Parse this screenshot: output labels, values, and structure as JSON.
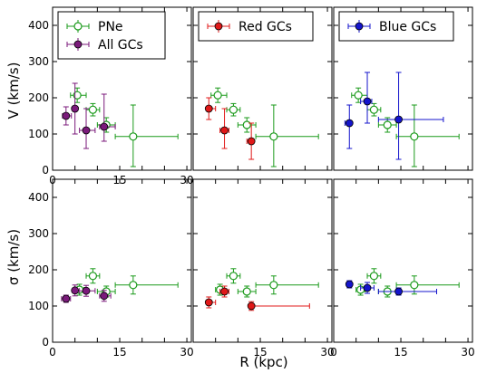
{
  "figure": {
    "xlabel": "R (kpc)",
    "ylabel_top": "V (km/s)",
    "ylabel_bottom": "σ (km/s)"
  },
  "series_styles": {
    "pne": {
      "name": "PNe",
      "color": "#1a9a1a",
      "marker": "open-circle"
    },
    "all_gcs": {
      "name": "All GCs",
      "color": "#7b1a7b",
      "marker": "filled-circle"
    },
    "red_gcs": {
      "name": "Red GCs",
      "color": "#e01818",
      "marker": "filled-circle"
    },
    "blue_gcs": {
      "name": "Blue GCs",
      "color": "#1414cc",
      "marker": "filled-circle"
    }
  },
  "chart_data": [
    {
      "type": "scatter",
      "panel": "top-left",
      "xlim": [
        0,
        31
      ],
      "ylim": [
        0,
        450
      ],
      "xticks": [
        0,
        5,
        10,
        15,
        20,
        25,
        30
      ],
      "xtick_labels": [
        "0",
        "",
        "",
        "15",
        "",
        "",
        "30"
      ],
      "yticks": [
        0,
        100,
        200,
        300,
        400
      ],
      "ytick_labels": [
        "0",
        "100",
        "200",
        "300",
        "400"
      ],
      "legend": [
        "pne",
        "all_gcs"
      ],
      "legend_placement": "top-left",
      "series": [
        {
          "style": "pne",
          "points": [
            {
              "x": 5.5,
              "xerr": [
                1.5,
                2.0
              ],
              "y": 207,
              "yerr": [
                20,
                20
              ]
            },
            {
              "x": 9.0,
              "xerr": [
                1.5,
                1.5
              ],
              "y": 167,
              "yerr": [
                17,
                17
              ]
            },
            {
              "x": 12.0,
              "xerr": [
                2.0,
                2.0
              ],
              "y": 125,
              "yerr": [
                20,
                20
              ]
            },
            {
              "x": 18.0,
              "xerr": [
                4.0,
                10.0
              ],
              "y": 93,
              "yerr": [
                83,
                87
              ]
            }
          ]
        },
        {
          "style": "all_gcs",
          "points": [
            {
              "x": 3.0,
              "xerr": [
                0.8,
                1.2
              ],
              "y": 150,
              "yerr": [
                25,
                25
              ]
            },
            {
              "x": 5.0,
              "xerr": [
                0.5,
                0.5
              ],
              "y": 170,
              "yerr": [
                70,
                70
              ]
            },
            {
              "x": 7.5,
              "xerr": [
                1.5,
                2.0
              ],
              "y": 110,
              "yerr": [
                50,
                60
              ]
            },
            {
              "x": 11.5,
              "xerr": [
                1.0,
                2.5
              ],
              "y": 120,
              "yerr": [
                40,
                90
              ]
            }
          ]
        }
      ]
    },
    {
      "type": "scatter",
      "panel": "top-middle",
      "xlim": [
        0,
        31
      ],
      "ylim": [
        0,
        450
      ],
      "xticks": [
        0,
        5,
        10,
        15,
        20,
        25,
        30
      ],
      "yticks": [
        0,
        100,
        200,
        300,
        400
      ],
      "legend": [
        "red_gcs"
      ],
      "legend_placement": "top",
      "series": [
        {
          "style": "pne",
          "points": [
            {
              "x": 5.5,
              "xerr": [
                1.5,
                2.0
              ],
              "y": 207,
              "yerr": [
                20,
                20
              ]
            },
            {
              "x": 9.0,
              "xerr": [
                1.5,
                1.5
              ],
              "y": 167,
              "yerr": [
                17,
                17
              ]
            },
            {
              "x": 12.0,
              "xerr": [
                2.0,
                2.0
              ],
              "y": 125,
              "yerr": [
                20,
                20
              ]
            },
            {
              "x": 18.0,
              "xerr": [
                4.0,
                10.0
              ],
              "y": 93,
              "yerr": [
                83,
                87
              ]
            }
          ]
        },
        {
          "style": "red_gcs",
          "points": [
            {
              "x": 3.5,
              "xerr": [
                0.5,
                1.5
              ],
              "y": 170,
              "yerr": [
                30,
                30
              ]
            },
            {
              "x": 7.0,
              "xerr": [
                1.0,
                1.0
              ],
              "y": 110,
              "yerr": [
                50,
                60
              ]
            },
            {
              "x": 13.0,
              "xerr": [
                1.0,
                0.0
              ],
              "y": 80,
              "yerr": [
                50,
                50
              ]
            }
          ]
        }
      ]
    },
    {
      "type": "scatter",
      "panel": "top-right",
      "xlim": [
        0,
        31
      ],
      "ylim": [
        0,
        450
      ],
      "xticks": [
        0,
        5,
        10,
        15,
        20,
        25,
        30
      ],
      "yticks": [
        0,
        100,
        200,
        300,
        400
      ],
      "legend": [
        "blue_gcs"
      ],
      "legend_placement": "top",
      "series": [
        {
          "style": "pne",
          "points": [
            {
              "x": 5.5,
              "xerr": [
                1.5,
                2.0
              ],
              "y": 207,
              "yerr": [
                20,
                20
              ]
            },
            {
              "x": 9.0,
              "xerr": [
                1.5,
                1.5
              ],
              "y": 167,
              "yerr": [
                17,
                17
              ]
            },
            {
              "x": 12.0,
              "xerr": [
                2.0,
                2.0
              ],
              "y": 125,
              "yerr": [
                20,
                20
              ]
            },
            {
              "x": 18.0,
              "xerr": [
                4.0,
                10.0
              ],
              "y": 93,
              "yerr": [
                83,
                87
              ]
            }
          ]
        },
        {
          "style": "blue_gcs",
          "points": [
            {
              "x": 3.5,
              "xerr": [
                1.0,
                0.5
              ],
              "y": 130,
              "yerr": [
                70,
                50
              ]
            },
            {
              "x": 7.5,
              "xerr": [
                1.5,
                1.0
              ],
              "y": 190,
              "yerr": [
                60,
                80
              ]
            },
            {
              "x": 14.5,
              "xerr": [
                4.5,
                10.0
              ],
              "y": 140,
              "yerr": [
                110,
                130
              ]
            }
          ]
        }
      ]
    },
    {
      "type": "scatter",
      "panel": "bottom-left",
      "xlim": [
        0,
        31
      ],
      "ylim": [
        0,
        450
      ],
      "xticks": [
        0,
        5,
        10,
        15,
        20,
        25,
        30
      ],
      "xtick_labels": [
        "0",
        "",
        "",
        "15",
        "",
        "",
        "30"
      ],
      "yticks": [
        0,
        100,
        200,
        300,
        400
      ],
      "ytick_labels": [
        "0",
        "100",
        "200",
        "300",
        "400"
      ],
      "series": [
        {
          "style": "pne",
          "points": [
            {
              "x": 6.0,
              "xerr": [
                1.0,
                1.0
              ],
              "y": 145,
              "yerr": [
                15,
                15
              ]
            },
            {
              "x": 9.0,
              "xerr": [
                1.5,
                1.5
              ],
              "y": 183,
              "yerr": [
                20,
                20
              ]
            },
            {
              "x": 12.0,
              "xerr": [
                2.0,
                2.0
              ],
              "y": 140,
              "yerr": [
                15,
                15
              ]
            },
            {
              "x": 18.0,
              "xerr": [
                4.0,
                10.0
              ],
              "y": 158,
              "yerr": [
                25,
                25
              ]
            }
          ]
        },
        {
          "style": "all_gcs",
          "points": [
            {
              "x": 3.0,
              "xerr": [
                1.0,
                1.0
              ],
              "y": 120,
              "yerr": [
                10,
                10
              ]
            },
            {
              "x": 5.0,
              "xerr": [
                0.5,
                0.5
              ],
              "y": 143,
              "yerr": [
                15,
                15
              ]
            },
            {
              "x": 7.5,
              "xerr": [
                1.5,
                2.0
              ],
              "y": 142,
              "yerr": [
                15,
                15
              ]
            },
            {
              "x": 11.5,
              "xerr": [
                1.0,
                1.5
              ],
              "y": 128,
              "yerr": [
                15,
                15
              ]
            }
          ]
        }
      ]
    },
    {
      "type": "scatter",
      "panel": "bottom-middle",
      "xlim": [
        0,
        31
      ],
      "ylim": [
        0,
        450
      ],
      "xticks": [
        0,
        5,
        10,
        15,
        20,
        25,
        30
      ],
      "xtick_labels": [
        "",
        "",
        "",
        "15",
        "",
        "",
        "30"
      ],
      "yticks": [
        0,
        100,
        200,
        300,
        400
      ],
      "series": [
        {
          "style": "pne",
          "points": [
            {
              "x": 6.0,
              "xerr": [
                1.0,
                1.0
              ],
              "y": 145,
              "yerr": [
                15,
                15
              ]
            },
            {
              "x": 9.0,
              "xerr": [
                1.5,
                1.5
              ],
              "y": 183,
              "yerr": [
                20,
                20
              ]
            },
            {
              "x": 12.0,
              "xerr": [
                2.0,
                2.0
              ],
              "y": 140,
              "yerr": [
                15,
                15
              ]
            },
            {
              "x": 18.0,
              "xerr": [
                4.0,
                10.0
              ],
              "y": 158,
              "yerr": [
                25,
                25
              ]
            }
          ]
        },
        {
          "style": "red_gcs",
          "points": [
            {
              "x": 3.5,
              "xerr": [
                0.5,
                1.5
              ],
              "y": 110,
              "yerr": [
                15,
                15
              ]
            },
            {
              "x": 7.0,
              "xerr": [
                1.0,
                1.0
              ],
              "y": 140,
              "yerr": [
                15,
                15
              ]
            },
            {
              "x": 13.0,
              "xerr": [
                0.0,
                13.0
              ],
              "y": 100,
              "yerr": [
                12,
                12
              ]
            }
          ]
        }
      ]
    },
    {
      "type": "scatter",
      "panel": "bottom-right",
      "xlim": [
        0,
        31
      ],
      "ylim": [
        0,
        450
      ],
      "xticks": [
        0,
        5,
        10,
        15,
        20,
        25,
        30
      ],
      "xtick_labels": [
        "0",
        "",
        "",
        "15",
        "",
        "",
        "30"
      ],
      "yticks": [
        0,
        100,
        200,
        300,
        400
      ],
      "series": [
        {
          "style": "pne",
          "points": [
            {
              "x": 6.0,
              "xerr": [
                1.0,
                1.0
              ],
              "y": 145,
              "yerr": [
                15,
                15
              ]
            },
            {
              "x": 9.0,
              "xerr": [
                1.5,
                1.5
              ],
              "y": 183,
              "yerr": [
                20,
                20
              ]
            },
            {
              "x": 12.0,
              "xerr": [
                2.0,
                2.0
              ],
              "y": 140,
              "yerr": [
                15,
                15
              ]
            },
            {
              "x": 18.0,
              "xerr": [
                4.0,
                10.0
              ],
              "y": 158,
              "yerr": [
                25,
                25
              ]
            }
          ]
        },
        {
          "style": "blue_gcs",
          "points": [
            {
              "x": 3.5,
              "xerr": [
                0.5,
                0.5
              ],
              "y": 160,
              "yerr": [
                10,
                10
              ]
            },
            {
              "x": 7.5,
              "xerr": [
                1.5,
                1.5
              ],
              "y": 150,
              "yerr": [
                15,
                15
              ]
            },
            {
              "x": 14.5,
              "xerr": [
                4.5,
                8.5
              ],
              "y": 140,
              "yerr": [
                10,
                10
              ]
            }
          ]
        }
      ]
    }
  ]
}
